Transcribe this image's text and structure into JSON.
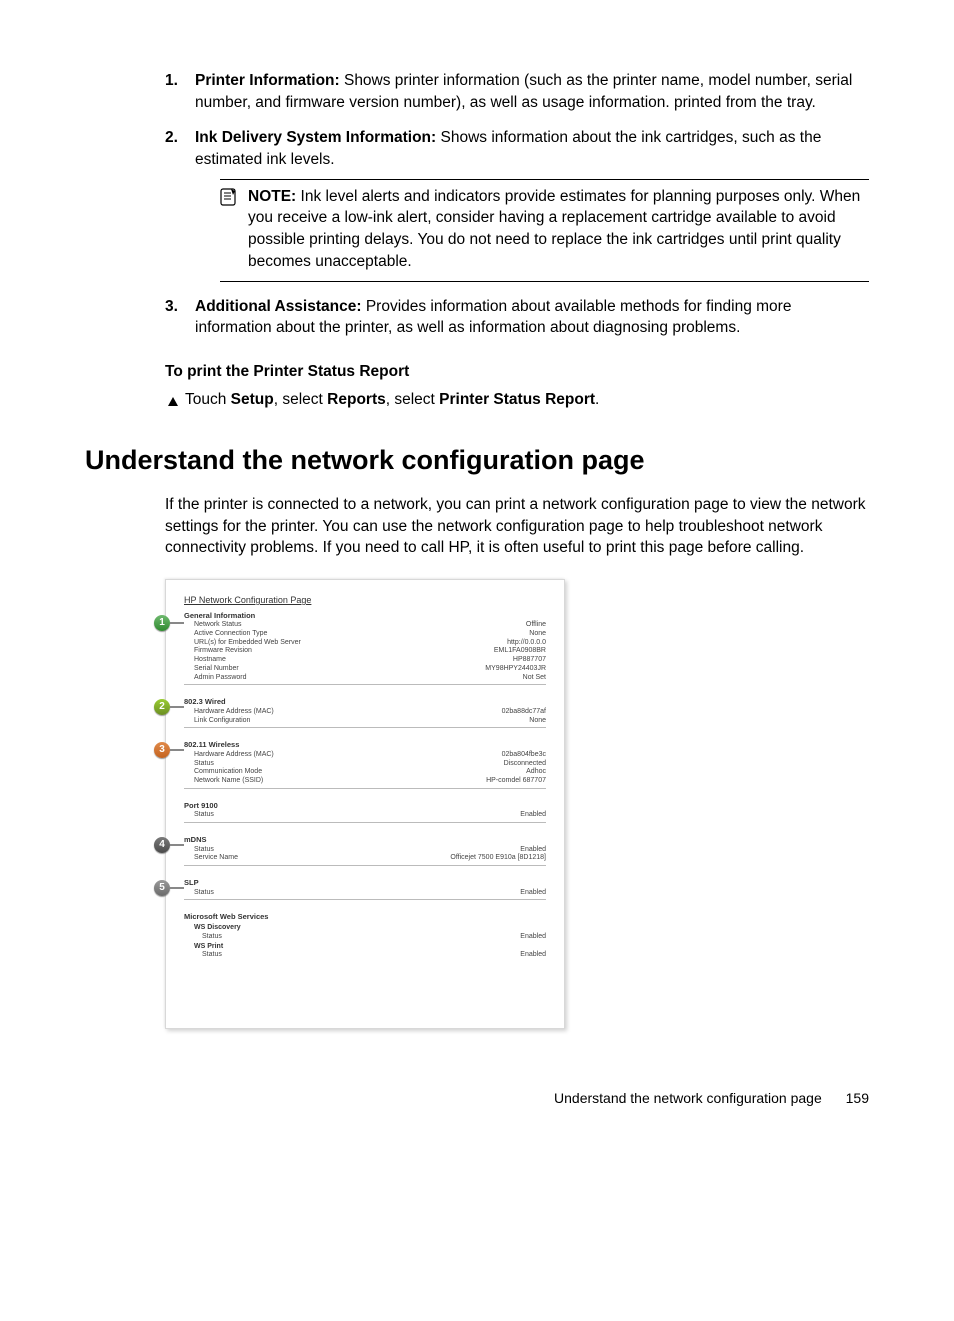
{
  "list": {
    "item1": {
      "title": "Printer Information:",
      "text": " Shows printer information (such as the printer name, model number, serial number, and firmware version number), as well as usage information. printed from the tray."
    },
    "item2": {
      "title": "Ink Delivery System Information:",
      "text": " Shows information about the ink cartridges, such as the estimated ink levels."
    },
    "note": {
      "label": "NOTE:",
      "text": "  Ink level alerts and indicators provide estimates for planning purposes only. When you receive a low-ink alert, consider having a replacement cartridge available to avoid possible printing delays. You do not need to replace the ink cartridges until print quality becomes unacceptable."
    },
    "item3": {
      "title": "Additional Assistance:",
      "text": " Provides information about available methods for finding more information about the printer, as well as information about diagnosing problems."
    }
  },
  "subhead": "To print the Printer Status Report",
  "step": {
    "pre": "Touch ",
    "b1": "Setup",
    "mid1": ", select ",
    "b2": "Reports",
    "mid2": ", select ",
    "b3": "Printer Status Report",
    "post": "."
  },
  "section_title": "Understand the network configuration page",
  "section_para": "If the printer is connected to a network, you can print a network configuration page to view the network settings for the printer. You can use the network configuration page to help troubleshoot network connectivity problems. If you need to call HP, it is often useful to print this page before calling.",
  "figure": {
    "title": "HP Network Configuration Page",
    "callouts": [
      "1",
      "2",
      "3",
      "4",
      "5"
    ],
    "s1": {
      "title": "General Information",
      "rows": [
        [
          "Network Status",
          "Offline"
        ],
        [
          "Active Connection Type",
          "None"
        ],
        [
          "URL(s) for Embedded Web Server",
          "http://0.0.0.0"
        ],
        [
          "Firmware Revision",
          "EML1FA0908BR"
        ],
        [
          "Hostname",
          "HP887707"
        ],
        [
          "Serial Number",
          "MY98HPY24403JR"
        ],
        [
          "Admin Password",
          "Not Set"
        ]
      ]
    },
    "s2": {
      "title": "802.3 Wired",
      "rows": [
        [
          "Hardware Address (MAC)",
          "02ba88dc77af"
        ],
        [
          "Link Configuration",
          "None"
        ]
      ]
    },
    "s3": {
      "title": "802.11 Wireless",
      "rows": [
        [
          "Hardware Address (MAC)",
          "02ba804fbe3c"
        ],
        [
          "Status",
          "Disconnected"
        ],
        [
          "Communication Mode",
          "Adhoc"
        ],
        [
          "Network Name (SSID)",
          "HP-comdel 687707"
        ]
      ]
    },
    "s4": {
      "title": "Port 9100",
      "rows": [
        [
          "Status",
          "Enabled"
        ]
      ]
    },
    "s5": {
      "title": "mDNS",
      "rows": [
        [
          "Status",
          "Enabled"
        ],
        [
          "Service Name",
          "Officejet 7500 E910a [8D1218]"
        ]
      ]
    },
    "s6": {
      "title": "SLP",
      "rows": [
        [
          "Status",
          "Enabled"
        ]
      ]
    },
    "s7": {
      "title": "Microsoft Web Services",
      "sub1": "WS Discovery",
      "rows1": [
        [
          "Status",
          "Enabled"
        ]
      ],
      "sub2": "WS Print",
      "rows2": [
        [
          "Status",
          "Enabled"
        ]
      ]
    }
  },
  "footer": {
    "label": "Understand the network configuration page",
    "page": "159"
  }
}
